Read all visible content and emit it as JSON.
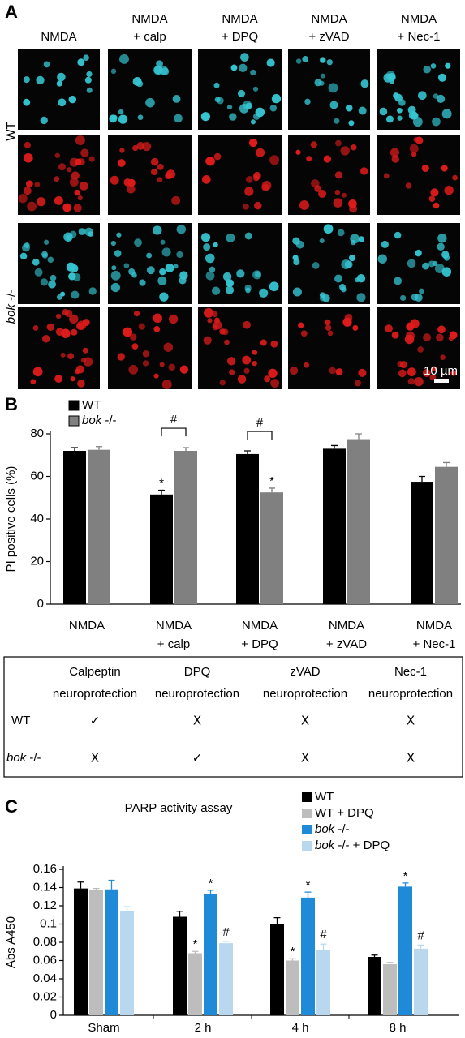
{
  "panel_a": {
    "label": "A",
    "column_labels": [
      [
        "NMDA"
      ],
      [
        "NMDA",
        "+ calp"
      ],
      [
        "NMDA",
        "+ DPQ"
      ],
      [
        "NMDA",
        "+ zVAD"
      ],
      [
        "NMDA",
        "+ Nec-1"
      ]
    ],
    "row_labels": [
      "WT",
      "bok -/-"
    ],
    "scale_bar": "10 µm"
  },
  "chart_data": [
    {
      "type": "bar",
      "panel_label": "B",
      "ylabel": "PI positive cells (%)",
      "categories": [
        [
          "NMDA"
        ],
        [
          "NMDA",
          "+ calp"
        ],
        [
          "NMDA",
          "+ DPQ"
        ],
        [
          "NMDA",
          "+ zVAD"
        ],
        [
          "NMDA",
          "+ Nec-1"
        ]
      ],
      "series": [
        {
          "name": "WT",
          "color": "#000000",
          "values": [
            72,
            51.5,
            70.5,
            73,
            57.5
          ],
          "errors": [
            1.5,
            2,
            1.5,
            1.5,
            2.5
          ],
          "markers": [
            null,
            "*",
            null,
            null,
            null
          ]
        },
        {
          "name": "bok -/-",
          "color": "#808080",
          "values": [
            72.5,
            72,
            52.5,
            77.5,
            64.5
          ],
          "errors": [
            1.5,
            1.5,
            2,
            2.5,
            2
          ],
          "markers": [
            null,
            null,
            "*",
            null,
            null
          ]
        }
      ],
      "brackets": [
        null,
        "#",
        "#",
        null,
        null
      ],
      "ylim": [
        0,
        80
      ],
      "yticks": [
        0,
        20,
        40,
        60,
        80
      ]
    },
    {
      "type": "bar",
      "panel_label": "C",
      "title": "PARP activity assay",
      "ylabel": "Abs A450",
      "categories": [
        [
          "Sham"
        ],
        [
          "2 h"
        ],
        [
          "4 h"
        ],
        [
          "8 h"
        ]
      ],
      "series": [
        {
          "name": "WT",
          "color": "#000000",
          "values": [
            0.139,
            0.108,
            0.1,
            0.064
          ],
          "errors": [
            0.007,
            0.006,
            0.007,
            0.002
          ],
          "markers": [
            null,
            null,
            null,
            null
          ]
        },
        {
          "name": "WT + DPQ",
          "color": "#bdbdbd",
          "values": [
            0.137,
            0.068,
            0.06,
            0.056
          ],
          "errors": [
            0.002,
            0.002,
            0.002,
            0.002
          ],
          "markers": [
            null,
            "*",
            "*",
            null
          ]
        },
        {
          "name": "bok -/-",
          "color": "#1f8ad8",
          "values": [
            0.138,
            0.133,
            0.129,
            0.141
          ],
          "errors": [
            0.01,
            0.004,
            0.006,
            0.004
          ],
          "markers": [
            null,
            "*",
            "*",
            "*"
          ]
        },
        {
          "name": "bok -/-  + DPQ",
          "color": "#b9d8f0",
          "values": [
            0.114,
            0.079,
            0.072,
            0.073
          ],
          "errors": [
            0.005,
            0.002,
            0.006,
            0.004
          ],
          "markers": [
            null,
            "#",
            "#",
            "#"
          ]
        }
      ],
      "ylim": [
        0,
        0.16
      ],
      "yticks": [
        0,
        0.02,
        0.04,
        0.06,
        0.08,
        0.1,
        0.12,
        0.14,
        0.16
      ]
    }
  ],
  "table": {
    "columns": [
      [
        "Calpeptin",
        "neuroprotection"
      ],
      [
        "DPQ",
        "neuroprotection"
      ],
      [
        "zVAD",
        "neuroprotection"
      ],
      [
        "Nec-1",
        "neuroprotection"
      ]
    ],
    "rows": [
      {
        "label": "WT",
        "cells": [
          "✓",
          "X",
          "X",
          "X"
        ]
      },
      {
        "label": "bok -/-",
        "cells": [
          "X",
          "✓",
          "X",
          "X"
        ]
      }
    ]
  }
}
